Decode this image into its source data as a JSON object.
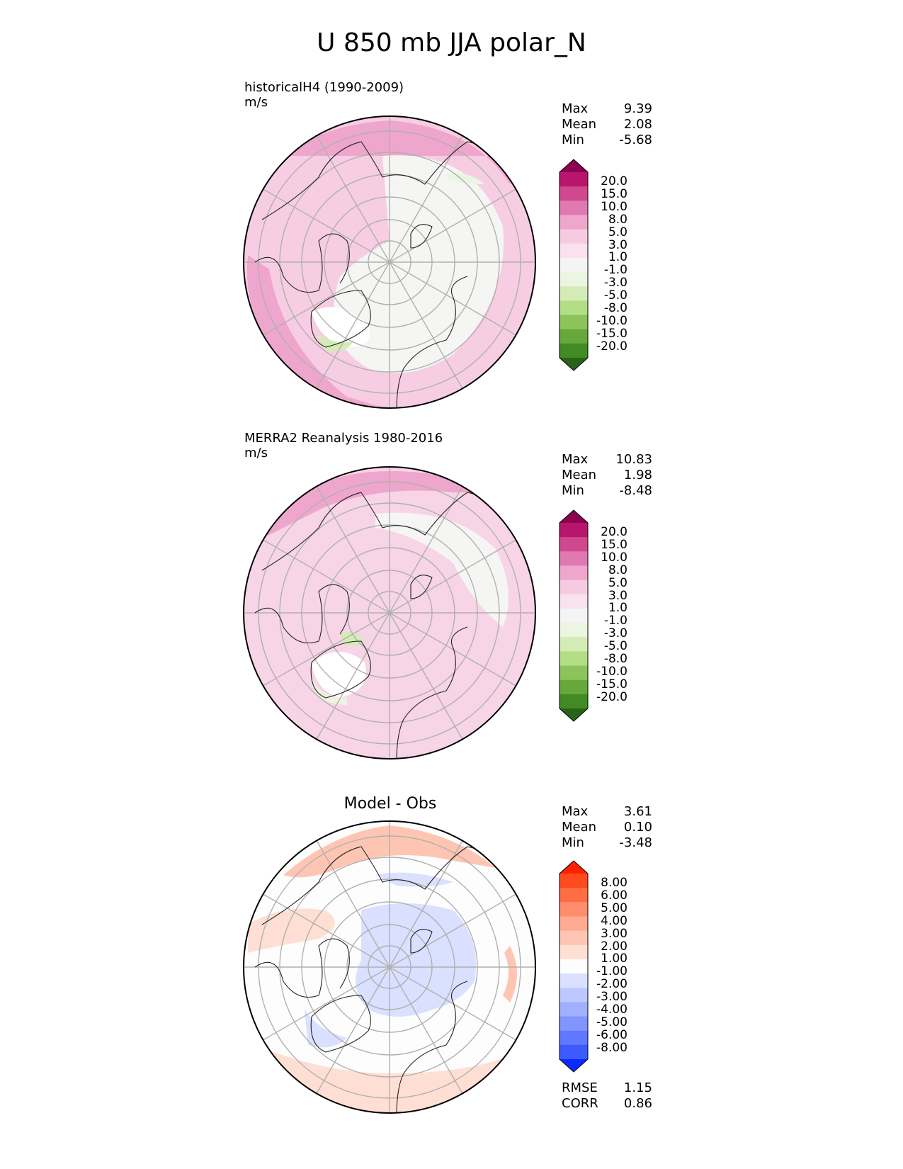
{
  "figure": {
    "title": "U 850 mb JJA polar_N"
  },
  "panels": [
    {
      "title": "historicalH4 (1990-2009)",
      "units": "m/s",
      "stats": [
        {
          "label": "Max",
          "value": "9.39"
        },
        {
          "label": "Mean",
          "value": "2.08"
        },
        {
          "label": "Min",
          "value": "-5.68"
        }
      ],
      "colorbar": {
        "levels": [
          "20.0",
          "15.0",
          "10.0",
          "8.0",
          "5.0",
          "3.0",
          "1.0",
          "-1.0",
          "-3.0",
          "-5.0",
          "-8.0",
          "-10.0",
          "-15.0",
          "-20.0"
        ],
        "colors": [
          "#8e0152",
          "#b8166c",
          "#d0498f",
          "#e179b1",
          "#efa6cc",
          "#f6cbe2",
          "#f9e1ee",
          "#f4f4f4",
          "#ebf5e1",
          "#d5ebb6",
          "#b3de85",
          "#8cc45b",
          "#66a839",
          "#418a24",
          "#276419"
        ]
      }
    },
    {
      "title": "MERRA2 Reanalysis 1980-2016",
      "units": "m/s",
      "stats": [
        {
          "label": "Max",
          "value": "10.83"
        },
        {
          "label": "Mean",
          "value": "1.98"
        },
        {
          "label": "Min",
          "value": "-8.48"
        }
      ],
      "colorbar": {
        "levels": [
          "20.0",
          "15.0",
          "10.0",
          "8.0",
          "5.0",
          "3.0",
          "1.0",
          "-1.0",
          "-3.0",
          "-5.0",
          "-8.0",
          "-10.0",
          "-15.0",
          "-20.0"
        ],
        "colors": [
          "#8e0152",
          "#b8166c",
          "#d0498f",
          "#e179b1",
          "#efa6cc",
          "#f6cbe2",
          "#f9e1ee",
          "#f4f4f4",
          "#ebf5e1",
          "#d5ebb6",
          "#b3de85",
          "#8cc45b",
          "#66a839",
          "#418a24",
          "#276419"
        ]
      }
    },
    {
      "title": "Model - Obs",
      "units": "",
      "stats": [
        {
          "label": "Max",
          "value": "3.61"
        },
        {
          "label": "Mean",
          "value": "0.10"
        },
        {
          "label": "Min",
          "value": "-3.48"
        }
      ],
      "colorbar": {
        "levels": [
          "8.00",
          "6.00",
          "5.00",
          "4.00",
          "3.00",
          "2.00",
          "1.00",
          "-1.00",
          "-2.00",
          "-3.00",
          "-4.00",
          "-5.00",
          "-6.00",
          "-8.00"
        ],
        "colors": [
          "#ff2000",
          "#ff4a1e",
          "#ff6d45",
          "#ff8d6c",
          "#ffaa91",
          "#ffc5b3",
          "#ffdfd3",
          "#fdfdfd",
          "#dae0ff",
          "#bdc8ff",
          "#a0b0ff",
          "#8195ff",
          "#6078ff",
          "#3d5aff",
          "#0a2aff"
        ]
      },
      "metrics": [
        {
          "label": "RMSE",
          "value": "1.15"
        },
        {
          "label": "CORR",
          "value": "0.86"
        }
      ]
    }
  ]
}
